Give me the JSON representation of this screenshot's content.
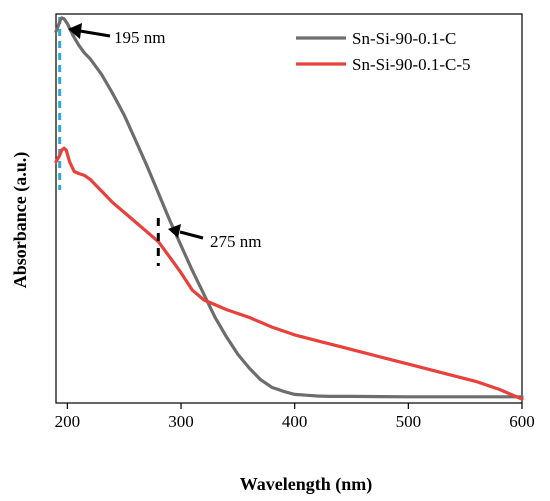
{
  "chart_data": {
    "type": "line",
    "title": "",
    "xlabel": "Wavelength (nm)",
    "ylabel": "Absorbance (a.u.)",
    "xlim": [
      190,
      600
    ],
    "ylim": [
      0,
      1
    ],
    "xticks": [
      200,
      300,
      400,
      500,
      600
    ],
    "y_ticks_labeled": false,
    "grid": false,
    "legend_position": "top-right",
    "series": [
      {
        "name": "Sn-Si-90-0.1-C",
        "color": "#6d6d6d",
        "x": [
          190,
          192,
          194,
          195,
          197,
          200,
          205,
          210,
          215,
          220,
          230,
          240,
          250,
          260,
          270,
          280,
          290,
          300,
          310,
          320,
          330,
          340,
          350,
          360,
          370,
          380,
          390,
          400,
          410,
          420,
          430,
          450,
          500,
          550,
          600
        ],
        "y": [
          0.955,
          0.97,
          0.985,
          0.99,
          0.988,
          0.975,
          0.945,
          0.92,
          0.9,
          0.885,
          0.845,
          0.795,
          0.74,
          0.675,
          0.61,
          0.54,
          0.47,
          0.405,
          0.34,
          0.28,
          0.22,
          0.17,
          0.125,
          0.09,
          0.06,
          0.04,
          0.03,
          0.022,
          0.02,
          0.018,
          0.017,
          0.017,
          0.016,
          0.016,
          0.016
        ]
      },
      {
        "name": "Sn-Si-90-0.1-C-5",
        "color": "#e8403a",
        "x": [
          190,
          193,
          195,
          197,
          199,
          202,
          206,
          210,
          215,
          220,
          230,
          240,
          250,
          260,
          270,
          280,
          290,
          300,
          310,
          320,
          340,
          360,
          380,
          400,
          420,
          440,
          460,
          480,
          500,
          520,
          540,
          560,
          580,
          600
        ],
        "y": [
          0.62,
          0.635,
          0.65,
          0.655,
          0.65,
          0.62,
          0.595,
          0.59,
          0.585,
          0.575,
          0.545,
          0.515,
          0.49,
          0.465,
          0.44,
          0.415,
          0.375,
          0.335,
          0.29,
          0.265,
          0.24,
          0.22,
          0.195,
          0.175,
          0.16,
          0.145,
          0.13,
          0.115,
          0.1,
          0.085,
          0.07,
          0.055,
          0.035,
          0.01
        ]
      }
    ],
    "annotations": [
      {
        "text": "195 nm",
        "x": 195,
        "marker": "blue-dashed-vertical-line",
        "color": "#2aa8e0"
      },
      {
        "text": "275 nm",
        "x": 280,
        "marker": "black-dashed-tick",
        "color": "#000000"
      }
    ]
  }
}
